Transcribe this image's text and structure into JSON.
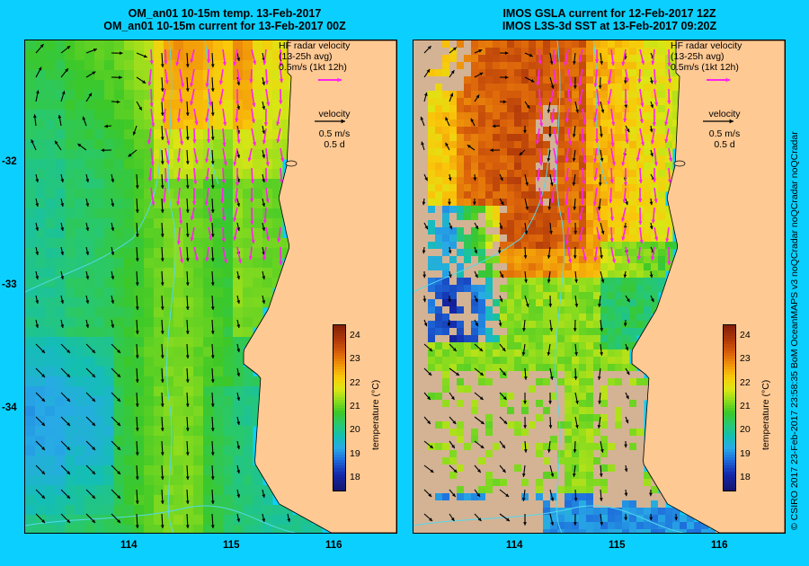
{
  "left": {
    "title1": "OM_an01 10-15m temp. 13-Feb-2017",
    "title2": "OM_an01 10-15m current for 13-Feb-2017 00Z"
  },
  "right": {
    "title1": "IMOS GSLA current for 12-Feb-2017 12Z",
    "title2": "IMOS L3S-3d SST at 13-Feb-2017 09:20Z"
  },
  "hf_note": [
    "HF radar velocity",
    "(13-25h avg)",
    "0.5m/s (1kt 12h)"
  ],
  "vel_note": [
    "velocity",
    "0.5 m/s",
    "0.5 d"
  ],
  "lat_ticks": [
    "-32",
    "-33",
    "-34"
  ],
  "lon_ticks": [
    "114",
    "115",
    "116"
  ],
  "colorbar": {
    "label": "temperature (°C)",
    "ticks": [
      "24",
      "23",
      "22",
      "21",
      "20",
      "19",
      "18"
    ],
    "min": 17.5,
    "max": 24.5
  },
  "credit": "© CSIRO 2017  23-Feb-2017 23:58:35 BoM OceanMAPS v3 noQCradar noQCradar noQCradar",
  "colors": {
    "background": "#0bd0ff",
    "land": "#ffc993",
    "hf_arrow": "#ff22ee",
    "coast": "#55d8ee"
  }
}
